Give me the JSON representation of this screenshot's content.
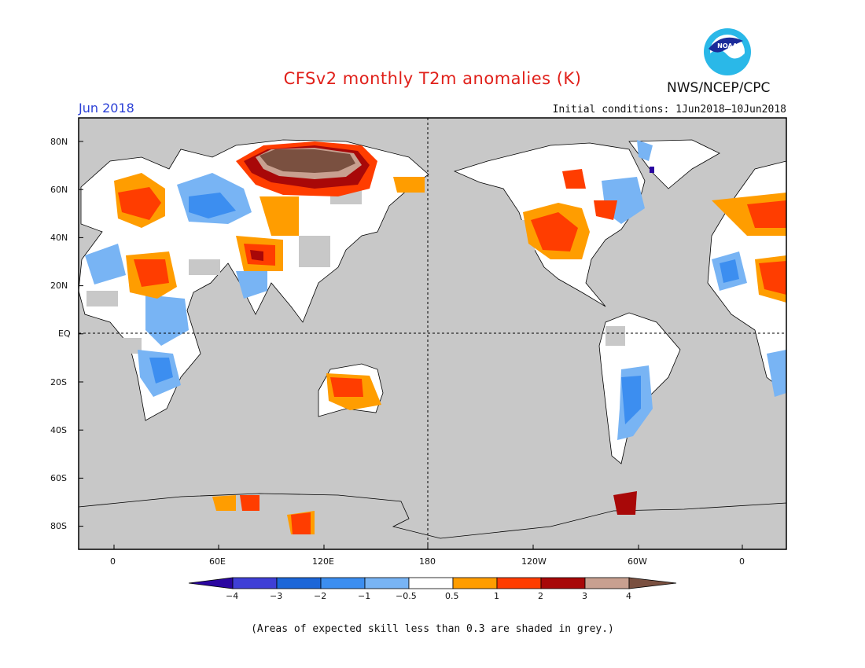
{
  "header": {
    "title": "CFSv2 monthly T2m anomalies (K)",
    "agency": "NWS/NCEP/CPC",
    "month": "Jun 2018",
    "initial_conditions": "Initial conditions: 1Jun2018–10Jun2018"
  },
  "map": {
    "lat_labels": [
      "80N",
      "60N",
      "40N",
      "20N",
      "EQ",
      "20S",
      "40S",
      "60S",
      "80S"
    ],
    "lon_labels": [
      "0",
      "60E",
      "120E",
      "180",
      "120W",
      "60W",
      "0"
    ],
    "background_meaning": "grey = low skill"
  },
  "colorbar": {
    "tick_labels": [
      "−4",
      "−3",
      "−2",
      "−1",
      "−0.5",
      "0.5",
      "1",
      "2",
      "3",
      "4"
    ],
    "colors": [
      "#2a06a0",
      "#3f3fd6",
      "#1c66d8",
      "#3c8ef0",
      "#78b4f4",
      "#ffffff",
      "#ff9d00",
      "#ff3d00",
      "#a80808",
      "#c8a090",
      "#7a5040"
    ]
  },
  "footnote": "(Areas of expected skill less than 0.3 are shaded in grey.)",
  "colors": {
    "title": "#e0201a",
    "month": "#2a3fd6",
    "skill_grey": "#c8c8c8"
  }
}
